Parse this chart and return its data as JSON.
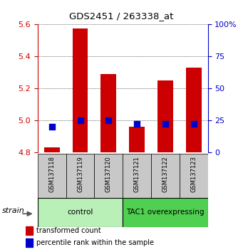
{
  "title": "GDS2451 / 263338_at",
  "samples": [
    "GSM137118",
    "GSM137119",
    "GSM137120",
    "GSM137121",
    "GSM137122",
    "GSM137123"
  ],
  "red_values": [
    4.83,
    5.57,
    5.29,
    4.96,
    5.25,
    5.33
  ],
  "blue_values": [
    20,
    25,
    25,
    22,
    22,
    22
  ],
  "ylim_left": [
    4.8,
    5.6
  ],
  "ylim_right": [
    0,
    100
  ],
  "yticks_left": [
    4.8,
    5.0,
    5.2,
    5.4,
    5.6
  ],
  "yticks_right": [
    0,
    25,
    50,
    75,
    100
  ],
  "groups": [
    {
      "label": "control",
      "samples": [
        0,
        1,
        2
      ],
      "color": "#b8f0b8"
    },
    {
      "label": "TAC1 overexpressing",
      "samples": [
        3,
        4,
        5
      ],
      "color": "#50d050"
    }
  ],
  "bar_color": "#cc0000",
  "dot_color": "#0000cc",
  "bar_width": 0.55,
  "dot_size": 30,
  "label_color_left": "#cc0000",
  "label_color_right": "#0000cc",
  "strain_label": "strain",
  "legend_items": [
    "transformed count",
    "percentile rank within the sample"
  ]
}
